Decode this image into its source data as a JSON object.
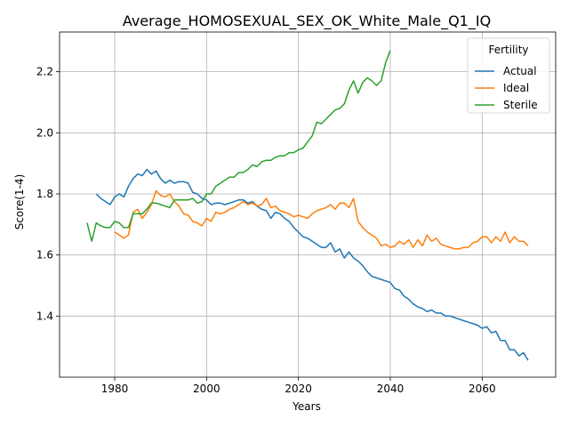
{
  "chart_data": {
    "type": "line",
    "title": "Average_HOMOSEXUAL_SEX_OK_White_Male_Q1_IQ",
    "xlabel": "Years",
    "ylabel": "Score(1-4)",
    "xlim": [
      1968,
      2076
    ],
    "ylim": [
      1.2,
      2.33
    ],
    "xticks": [
      1980,
      2000,
      2020,
      2040,
      2060
    ],
    "yticks": [
      1.4,
      1.6,
      1.8,
      2.0,
      2.2
    ],
    "xtick_labels": [
      "1980",
      "2000",
      "2020",
      "2040",
      "2060"
    ],
    "ytick_labels": [
      "1.4",
      "1.6",
      "1.8",
      "2.0",
      "2.2"
    ],
    "grid": true,
    "legend": {
      "title": "Fertility",
      "placement": "top-right"
    },
    "series": [
      {
        "name": "Actual",
        "color": "#1f77b4",
        "x": [
          1976,
          1977,
          1978,
          1979,
          1980,
          1981,
          1982,
          1983,
          1984,
          1985,
          1986,
          1987,
          1988,
          1989,
          1990,
          1991,
          1992,
          1993,
          1994,
          1995,
          1996,
          1997,
          1998,
          1999,
          2000,
          2001,
          2002,
          2003,
          2004,
          2005,
          2006,
          2007,
          2008,
          2009,
          2010,
          2011,
          2012,
          2013,
          2014,
          2015,
          2016,
          2017,
          2018,
          2019,
          2020,
          2021,
          2022,
          2023,
          2024,
          2025,
          2026,
          2027,
          2028,
          2029,
          2030,
          2031,
          2032,
          2033,
          2034,
          2035,
          2036,
          2037,
          2038,
          2039,
          2040,
          2041,
          2042,
          2043,
          2044,
          2045,
          2046,
          2047,
          2048,
          2049,
          2050,
          2051,
          2052,
          2053,
          2054,
          2055,
          2056,
          2057,
          2058,
          2059,
          2060,
          2061,
          2062,
          2063,
          2064,
          2065,
          2066,
          2067,
          2068,
          2069,
          2070
        ],
        "values": [
          1.8,
          1.785,
          1.775,
          1.765,
          1.79,
          1.8,
          1.79,
          1.825,
          1.85,
          1.865,
          1.86,
          1.88,
          1.865,
          1.875,
          1.85,
          1.835,
          1.845,
          1.835,
          1.84,
          1.84,
          1.835,
          1.805,
          1.8,
          1.785,
          1.78,
          1.765,
          1.77,
          1.77,
          1.765,
          1.77,
          1.775,
          1.78,
          1.78,
          1.77,
          1.775,
          1.76,
          1.75,
          1.745,
          1.72,
          1.74,
          1.735,
          1.72,
          1.71,
          1.69,
          1.675,
          1.66,
          1.655,
          1.645,
          1.635,
          1.625,
          1.625,
          1.64,
          1.61,
          1.62,
          1.59,
          1.61,
          1.59,
          1.58,
          1.565,
          1.545,
          1.53,
          1.525,
          1.52,
          1.515,
          1.51,
          1.49,
          1.485,
          1.465,
          1.455,
          1.44,
          1.43,
          1.425,
          1.415,
          1.42,
          1.41,
          1.41,
          1.4,
          1.4,
          1.395,
          1.39,
          1.385,
          1.38,
          1.375,
          1.37,
          1.36,
          1.365,
          1.345,
          1.35,
          1.32,
          1.32,
          1.29,
          1.29,
          1.27,
          1.28,
          1.255
        ]
      },
      {
        "name": "Ideal",
        "color": "#ff7f0e",
        "x": [
          1980,
          1981,
          1982,
          1983,
          1984,
          1985,
          1986,
          1987,
          1988,
          1989,
          1990,
          1991,
          1992,
          1993,
          1994,
          1995,
          1996,
          1997,
          1998,
          1999,
          2000,
          2001,
          2002,
          2003,
          2004,
          2005,
          2006,
          2007,
          2008,
          2009,
          2010,
          2011,
          2012,
          2013,
          2014,
          2015,
          2016,
          2017,
          2018,
          2019,
          2020,
          2021,
          2022,
          2023,
          2024,
          2025,
          2026,
          2027,
          2028,
          2029,
          2030,
          2031,
          2032,
          2033,
          2034,
          2035,
          2036,
          2037,
          2038,
          2039,
          2040,
          2041,
          2042,
          2043,
          2044,
          2045,
          2046,
          2047,
          2048,
          2049,
          2050,
          2051,
          2052,
          2053,
          2054,
          2055,
          2056,
          2057,
          2058,
          2059,
          2060,
          2061,
          2062,
          2063,
          2064,
          2065,
          2066,
          2067,
          2068,
          2069,
          2070
        ],
        "values": [
          1.675,
          1.665,
          1.655,
          1.665,
          1.74,
          1.75,
          1.72,
          1.74,
          1.765,
          1.81,
          1.795,
          1.79,
          1.8,
          1.775,
          1.76,
          1.735,
          1.73,
          1.71,
          1.705,
          1.695,
          1.72,
          1.71,
          1.74,
          1.735,
          1.74,
          1.75,
          1.755,
          1.765,
          1.775,
          1.765,
          1.77,
          1.76,
          1.765,
          1.785,
          1.755,
          1.76,
          1.745,
          1.74,
          1.735,
          1.725,
          1.73,
          1.725,
          1.72,
          1.735,
          1.745,
          1.75,
          1.755,
          1.765,
          1.75,
          1.77,
          1.77,
          1.755,
          1.785,
          1.71,
          1.69,
          1.675,
          1.665,
          1.655,
          1.63,
          1.635,
          1.625,
          1.63,
          1.645,
          1.635,
          1.65,
          1.625,
          1.65,
          1.63,
          1.665,
          1.645,
          1.655,
          1.635,
          1.63,
          1.625,
          1.62,
          1.62,
          1.625,
          1.625,
          1.64,
          1.645,
          1.66,
          1.66,
          1.64,
          1.66,
          1.645,
          1.675,
          1.64,
          1.66,
          1.645,
          1.645,
          1.63
        ]
      },
      {
        "name": "Sterile",
        "color": "#2ca02c",
        "x": [
          1974,
          1975,
          1976,
          1977,
          1978,
          1979,
          1980,
          1981,
          1982,
          1983,
          1984,
          1985,
          1986,
          1987,
          1988,
          1989,
          1990,
          1991,
          1992,
          1993,
          1994,
          1995,
          1996,
          1997,
          1998,
          1999,
          2000,
          2001,
          2002,
          2003,
          2004,
          2005,
          2006,
          2007,
          2008,
          2009,
          2010,
          2011,
          2012,
          2013,
          2014,
          2015,
          2016,
          2017,
          2018,
          2019,
          2020,
          2021,
          2022,
          2023,
          2024,
          2025,
          2026,
          2027,
          2028,
          2029,
          2030,
          2031,
          2032,
          2033,
          2034,
          2035,
          2036,
          2037,
          2038,
          2039,
          2040
        ],
        "values": [
          1.705,
          1.645,
          1.705,
          1.695,
          1.69,
          1.69,
          1.71,
          1.705,
          1.69,
          1.69,
          1.735,
          1.735,
          1.735,
          1.75,
          1.77,
          1.77,
          1.765,
          1.76,
          1.755,
          1.78,
          1.78,
          1.78,
          1.78,
          1.785,
          1.77,
          1.775,
          1.8,
          1.8,
          1.825,
          1.835,
          1.845,
          1.855,
          1.855,
          1.87,
          1.87,
          1.88,
          1.895,
          1.89,
          1.905,
          1.91,
          1.91,
          1.92,
          1.925,
          1.925,
          1.935,
          1.935,
          1.945,
          1.95,
          1.97,
          1.99,
          2.035,
          2.03,
          2.045,
          2.06,
          2.075,
          2.08,
          2.095,
          2.14,
          2.17,
          2.13,
          2.165,
          2.18,
          2.17,
          2.155,
          2.17,
          2.23,
          2.27
        ]
      }
    ]
  }
}
